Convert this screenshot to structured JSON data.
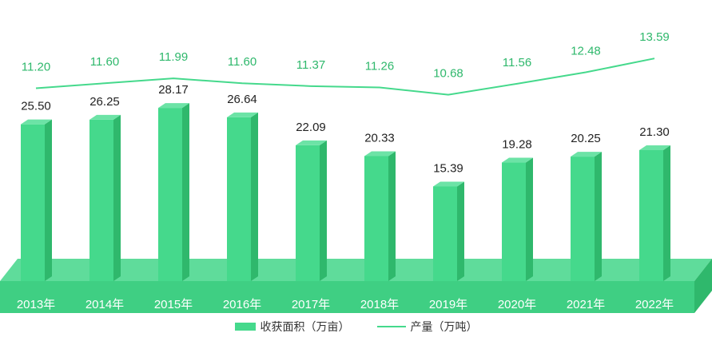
{
  "chart_data": {
    "type": "bar",
    "categories": [
      "2013年",
      "2014年",
      "2015年",
      "2016年",
      "2017年",
      "2018年",
      "2019年",
      "2020年",
      "2021年",
      "2022年"
    ],
    "series": [
      {
        "name": "收获面积（万亩）",
        "type": "bar",
        "values": [
          25.5,
          26.25,
          28.17,
          26.64,
          22.09,
          20.33,
          15.39,
          19.28,
          20.25,
          21.3
        ],
        "labels": [
          "25.50",
          "26.25",
          "28.17",
          "26.64",
          "22.09",
          "20.33",
          "15.39",
          "19.28",
          "20.25",
          "21.30"
        ]
      },
      {
        "name": "产量（万吨）",
        "type": "line",
        "values": [
          11.2,
          11.6,
          11.99,
          11.6,
          11.37,
          11.26,
          10.68,
          11.56,
          12.48,
          13.59
        ],
        "labels": [
          "11.20",
          "11.60",
          "11.99",
          "11.60",
          "11.37",
          "11.26",
          "10.68",
          "11.56",
          "12.48",
          "13.59"
        ]
      }
    ],
    "legend_position": "bottom",
    "grid": false
  },
  "colors": {
    "bar_front": "#45d98c",
    "bar_side": "#2fb86c",
    "bar_top": "#6ce3a6",
    "floor_top": "#5fdc9b",
    "floor_front": "#3fcf83",
    "line": "#45d98c",
    "line_label": "#2fb86c",
    "bar_label": "#222222",
    "axis_label": "#ffffff"
  },
  "legend": {
    "bar": "收获面积（万亩）",
    "line": "产量（万吨）"
  }
}
